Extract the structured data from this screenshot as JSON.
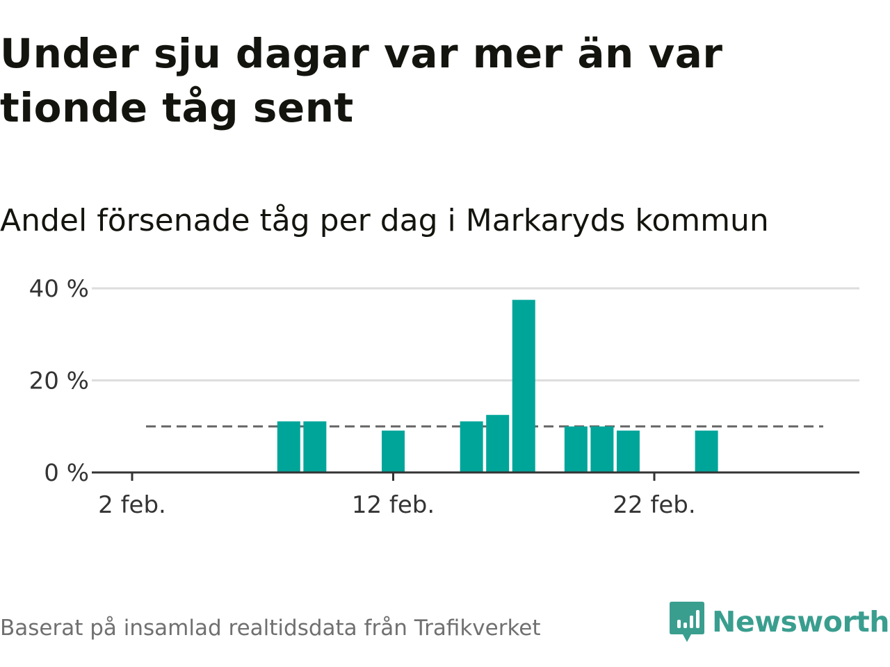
{
  "header": {
    "title": "Under sju dagar var mer än var tionde tåg sent",
    "subtitle": "Andel försenade tåg per dag i Markaryds kommun"
  },
  "footer": {
    "source": "Baserat på insamlad realtidsdata från Trafikverket",
    "logo_text": "Newsworthy"
  },
  "colors": {
    "bar": "#00a59a",
    "reference_line": "#666666",
    "gridline": "#dddddd",
    "axis": "#333333",
    "logo": "#3a9e8f"
  },
  "chart_data": {
    "type": "bar",
    "title": "",
    "xlabel": "",
    "ylabel": "",
    "x_type": "date",
    "x": [
      "2 feb.",
      "3 feb.",
      "4 feb.",
      "5 feb.",
      "6 feb.",
      "7 feb.",
      "8 feb.",
      "9 feb.",
      "10 feb.",
      "11 feb.",
      "12 feb.",
      "13 feb.",
      "14 feb.",
      "15 feb.",
      "16 feb.",
      "17 feb.",
      "18 feb.",
      "19 feb.",
      "20 feb.",
      "21 feb.",
      "22 feb.",
      "23 feb.",
      "24 feb.",
      "25 feb.",
      "26 feb.",
      "27 feb.",
      "28 feb."
    ],
    "values": [
      0,
      0,
      0,
      0,
      0,
      0,
      11.1,
      11.1,
      0,
      0,
      9.1,
      0,
      0,
      11.1,
      12.5,
      37.5,
      0,
      10.0,
      10.0,
      9.1,
      0,
      0,
      9.1,
      0,
      0,
      0,
      0
    ],
    "x_ticks": [
      "2 feb.",
      "12 feb.",
      "22 feb."
    ],
    "y_ticks": [
      {
        "value": 0,
        "label": "0 %"
      },
      {
        "value": 20,
        "label": "20 %"
      },
      {
        "value": 40,
        "label": "40 %"
      }
    ],
    "ylim": [
      0,
      40
    ],
    "reference_line": {
      "value": 10,
      "style": "dashed"
    },
    "grid": true,
    "legend": "none"
  }
}
